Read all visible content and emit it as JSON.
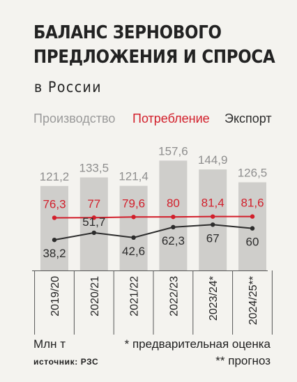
{
  "header": {
    "title_line1": "БАЛАНС ЗЕРНОВОГО",
    "title_line2": "ПРЕДЛОЖЕНИЯ И СПРОСА",
    "subtitle": "в России"
  },
  "legend": {
    "production": "Производство",
    "consumption": "Потребление",
    "export": "Экспорт"
  },
  "footer": {
    "unit": "Млн т",
    "source": "источник: РЗС",
    "note_estimate": "* предварительная оценка",
    "note_forecast": "** прогноз"
  },
  "colors": {
    "production_bar": "#cfcecb",
    "production_label": "#8e8e8e",
    "consumption": "#d21f2b",
    "export": "#2c2c2c",
    "background": "#f4f3ef"
  },
  "chart_data": {
    "type": "bar",
    "categories": [
      "2019/20",
      "2020/21",
      "2021/22",
      "2022/23",
      "2023/24*",
      "2024/25**"
    ],
    "series": [
      {
        "name": "Производство",
        "type": "bar",
        "values": [
          121.2,
          133.5,
          121.4,
          157.6,
          144.9,
          126.5
        ],
        "labels": [
          "121,2",
          "133,5",
          "121,4",
          "157,6",
          "144,9",
          "126,5"
        ]
      },
      {
        "name": "Потребление",
        "type": "line",
        "values": [
          76.3,
          77,
          79.6,
          80,
          81.4,
          81.6
        ],
        "labels": [
          "76,3",
          "77",
          "79,6",
          "80",
          "81,4",
          "81,6"
        ]
      },
      {
        "name": "Экспорт",
        "type": "line",
        "values": [
          38.2,
          51.7,
          42.6,
          62.3,
          67,
          60
        ],
        "labels": [
          "38,2",
          "51,7",
          "42,6",
          "62,3",
          "67",
          "60"
        ]
      }
    ],
    "title": "БАЛАНС ЗЕРНОВОГО ПРЕДЛОЖЕНИЯ И СПРОСА",
    "subtitle": "в России",
    "ylabel": "Млн т",
    "grid": false,
    "legend_position": "top"
  }
}
